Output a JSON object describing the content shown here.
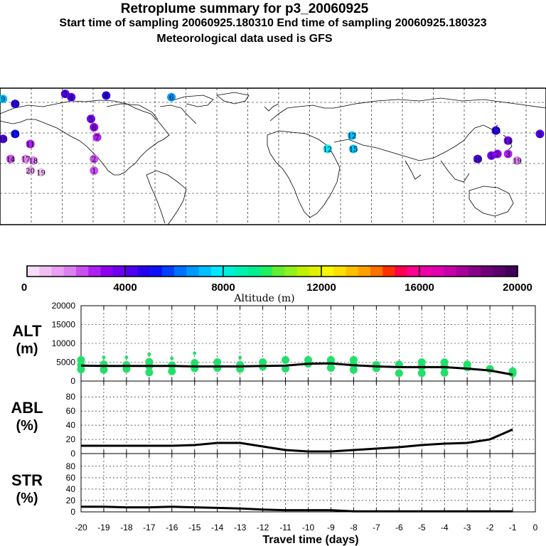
{
  "header": {
    "title": "Retroplume summary for p3_20060925",
    "sampling": "Start time of sampling 20060925.180310     End time of sampling 20060925.180323",
    "met": "Meteorological data used is GFS"
  },
  "colorbar": {
    "ticks": [
      "0",
      "4000",
      "8000",
      "12000",
      "16000",
      "20000"
    ],
    "label": "Altitude (m)",
    "colors": [
      "#f7dcf7",
      "#f0c0f0",
      "#e8a0f0",
      "#dc80f0",
      "#c850f0",
      "#b020f0",
      "#9000f0",
      "#6e00f0",
      "#5000f0",
      "#2800f0",
      "#1010f8",
      "#0040ff",
      "#0070ff",
      "#0098ff",
      "#00c0ff",
      "#00e8ff",
      "#00f0d8",
      "#00f0b0",
      "#00f090",
      "#20f060",
      "#60f030",
      "#90f020",
      "#c0f000",
      "#e0f000",
      "#f8f800",
      "#ffe000",
      "#ffc000",
      "#ffa000",
      "#ff7000",
      "#ff3000",
      "#ff0050",
      "#ff0090",
      "#f000a8",
      "#e000b0",
      "#c800a8",
      "#a8009a",
      "#880088",
      "#700078",
      "#580068",
      "#400058"
    ]
  },
  "chart_data": [
    {
      "type": "scatter",
      "title": "ALT",
      "ylabel": "ALT (m)",
      "ylim": [
        0,
        20000
      ],
      "yticks": [
        "0",
        "5000",
        "10000",
        "15000",
        "20000"
      ],
      "mean_line": {
        "x": [
          -20,
          -19,
          -18,
          -17,
          -16,
          -15,
          -14,
          -13,
          -12,
          -11,
          -10,
          -9,
          -8,
          -7,
          -6,
          -5,
          -4,
          -3,
          -2,
          -1
        ],
        "y": [
          4100,
          4000,
          4000,
          4000,
          4000,
          3900,
          3900,
          3900,
          4000,
          4100,
          4600,
          4700,
          4200,
          3900,
          3700,
          3700,
          3700,
          3300,
          2800,
          1700
        ]
      },
      "points": [
        {
          "x": -20,
          "y": [
            5600,
            4200,
            3100
          ]
        },
        {
          "x": -19,
          "y": [
            6300,
            4400,
            3000
          ]
        },
        {
          "x": -18,
          "y": [
            6300,
            4300,
            3200
          ]
        },
        {
          "x": -17,
          "y": [
            7100,
            5100,
            4000,
            2300
          ]
        },
        {
          "x": -16,
          "y": [
            6000,
            4200,
            2600
          ]
        },
        {
          "x": -15,
          "y": [
            7400,
            4800,
            3400
          ]
        },
        {
          "x": -14,
          "y": [
            5000,
            3500
          ]
        },
        {
          "x": -13,
          "y": [
            6200,
            4300,
            3200
          ]
        },
        {
          "x": -12,
          "y": [
            5000,
            3800
          ]
        },
        {
          "x": -11,
          "y": [
            5600,
            3300
          ]
        },
        {
          "x": -10,
          "y": [
            5600,
            4600
          ]
        },
        {
          "x": -9,
          "y": [
            5600,
            4800,
            3500
          ]
        },
        {
          "x": -8,
          "y": [
            5600,
            4400,
            3000
          ]
        },
        {
          "x": -7,
          "y": [
            4300,
            3400
          ]
        },
        {
          "x": -6,
          "y": [
            4400,
            2100
          ]
        },
        {
          "x": -5,
          "y": [
            5000,
            3800,
            2100
          ]
        },
        {
          "x": -4,
          "y": [
            5000,
            3800,
            2200
          ]
        },
        {
          "x": -3,
          "y": [
            4400,
            3600
          ]
        },
        {
          "x": -2,
          "y": [
            3200
          ]
        },
        {
          "x": -1,
          "y": [
            2600,
            2000
          ]
        }
      ]
    },
    {
      "type": "line",
      "title": "ABL",
      "ylabel": "ABL (%)",
      "ylim": [
        0,
        100
      ],
      "yticks": [
        "0",
        "20",
        "40",
        "60",
        "80"
      ],
      "x": [
        -20,
        -19,
        -18,
        -17,
        -16,
        -15,
        -14,
        -13,
        -12,
        -11,
        -10,
        -9,
        -8,
        -7,
        -6,
        -5,
        -4,
        -3,
        -2,
        -1
      ],
      "y": [
        11,
        11,
        11,
        11,
        11,
        12,
        15,
        15,
        10,
        5,
        3,
        3,
        5,
        7,
        9,
        12,
        14,
        15,
        20,
        34
      ]
    },
    {
      "type": "line",
      "title": "STR",
      "ylabel": "STR (%)",
      "ylim": [
        0,
        100
      ],
      "yticks": [
        "0",
        "20",
        "40",
        "60",
        "80"
      ],
      "xlabel": "Travel time (days)",
      "xticks": [
        "-20",
        "-19",
        "-18",
        "-17",
        "-16",
        "-15",
        "-14",
        "-13",
        "-12",
        "-11",
        "-10",
        "-9",
        "-8",
        "-7",
        "-6",
        "-5",
        "-4",
        "-3",
        "-2",
        "-1",
        "0"
      ],
      "x": [
        -20,
        -19,
        -18,
        -17,
        -16,
        -15,
        -14,
        -13,
        -12,
        -11,
        -10,
        -9,
        -8,
        -7,
        -6,
        -5,
        -4,
        -3,
        -2,
        -1
      ],
      "y": [
        9,
        9,
        8,
        8,
        9,
        8,
        7,
        6,
        4,
        3,
        3,
        3,
        1,
        1,
        1,
        1,
        1,
        1,
        1,
        1
      ]
    }
  ],
  "map": {
    "plumes": [
      {
        "lab": "9",
        "lon": -178,
        "lat": 58,
        "alt": 7200
      },
      {
        "lab": "10",
        "lon": -170,
        "lat": 55,
        "alt": 4500
      },
      {
        "lab": "15",
        "lon": -170,
        "lat": 37,
        "alt": 5200
      },
      {
        "lab": "16",
        "lon": -178,
        "lat": 34,
        "alt": 4200
      },
      {
        "lab": "11",
        "lon": -160,
        "lat": 31,
        "alt": 2500
      },
      {
        "lab": "14",
        "lon": -173,
        "lat": 22,
        "alt": 2000
      },
      {
        "lab": "17",
        "lon": -163,
        "lat": 22,
        "alt": 1800
      },
      {
        "lab": "18",
        "lon": -158,
        "lat": 21,
        "alt": 1500
      },
      {
        "lab": "20",
        "lon": -160,
        "lat": 15,
        "alt": 1000
      },
      {
        "lab": "19",
        "lon": -153,
        "lat": 14,
        "alt": 900
      },
      {
        "lab": "3",
        "lon": -137,
        "lat": 63,
        "alt": 4200
      },
      {
        "lab": "4",
        "lon": -133,
        "lat": 59,
        "alt": 4000
      },
      {
        "lab": "5",
        "lon": -120,
        "lat": 46,
        "alt": 3800
      },
      {
        "lab": "6",
        "lon": -118,
        "lat": 41,
        "alt": 3200
      },
      {
        "lab": "7",
        "lon": -116,
        "lat": 35,
        "alt": 2800
      },
      {
        "lab": "8",
        "lon": -110,
        "lat": 60,
        "alt": 4500
      },
      {
        "lab": "2",
        "lon": -118,
        "lat": 22,
        "alt": 2200
      },
      {
        "lab": "1",
        "lon": -118,
        "lat": 15,
        "alt": 2000
      },
      {
        "lab": "6",
        "lon": -67,
        "lat": 59,
        "alt": 6500
      },
      {
        "lab": "12",
        "lon": 36,
        "lat": 28,
        "alt": 7600
      },
      {
        "lab": "12",
        "lon": 52,
        "lat": 36,
        "alt": 7400
      },
      {
        "lab": "15",
        "lon": 53,
        "lat": 28,
        "alt": 7000
      },
      {
        "lab": "13",
        "lon": 147,
        "lat": 39,
        "alt": 4800
      },
      {
        "lab": "14",
        "lon": 155,
        "lat": 33,
        "alt": 3800
      },
      {
        "lab": "20",
        "lon": 135,
        "lat": 22,
        "alt": 4000
      },
      {
        "lab": "1",
        "lon": 144,
        "lat": 24,
        "alt": 3500
      },
      {
        "lab": "2",
        "lon": 148,
        "lat": 25,
        "alt": 3200
      },
      {
        "lab": "3",
        "lon": 155,
        "lat": 25,
        "alt": 2600
      },
      {
        "lab": "19",
        "lon": 161,
        "lat": 21,
        "alt": 1800
      },
      {
        "lab": "5",
        "lon": 176,
        "lat": 37,
        "alt": 4200
      }
    ]
  }
}
